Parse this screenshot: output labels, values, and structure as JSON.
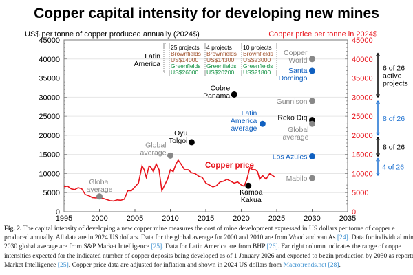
{
  "chart_data": {
    "type": "line",
    "title": "Copper capital intensity for developing new mines",
    "ylabel": "US$ per tonne of copper produced annually (2024$)",
    "y2label": "Copper price per tonne in 2024$",
    "xlim": [
      1995,
      2035
    ],
    "ylim": [
      0,
      45000
    ],
    "xticks": [
      1995,
      2000,
      2005,
      2010,
      2015,
      2020,
      2025,
      2030,
      2035
    ],
    "yticks": [
      0,
      5000,
      10000,
      15000,
      20000,
      25000,
      30000,
      35000,
      40000,
      45000
    ],
    "grid": true,
    "copper_price": {
      "name": "Copper price",
      "color": "#e8141c",
      "x": [
        1995,
        1995.5,
        1996,
        1996.5,
        1997,
        1997.5,
        1998,
        1998.5,
        1999,
        1999.5,
        2000,
        2000.5,
        2001,
        2001.5,
        2002,
        2002.5,
        2003,
        2003.5,
        2004,
        2004.5,
        2005,
        2005.5,
        2006,
        2006.3,
        2006.6,
        2007,
        2007.3,
        2007.6,
        2008,
        2008.4,
        2008.8,
        2009.2,
        2009.6,
        2010,
        2010.4,
        2010.8,
        2011.1,
        2011.5,
        2012,
        2012.5,
        2013,
        2013.5,
        2014,
        2014.5,
        2015,
        2015.5,
        2016,
        2016.5,
        2017,
        2017.5,
        2018,
        2018.5,
        2019,
        2019.5,
        2020,
        2020.4,
        2020.8,
        2021.2,
        2021.6,
        2022,
        2022.3,
        2022.6,
        2023,
        2023.5,
        2024,
        2024.4,
        2024.8
      ],
      "y": [
        6500,
        6700,
        6000,
        5800,
        6300,
        6000,
        4500,
        4200,
        3700,
        3600,
        3700,
        3500,
        3200,
        2900,
        2800,
        3100,
        3000,
        3300,
        5500,
        5500,
        6500,
        7500,
        12000,
        11000,
        9000,
        12000,
        11500,
        10500,
        12500,
        11000,
        5500,
        7000,
        8500,
        11000,
        10500,
        12500,
        13500,
        12500,
        11000,
        11000,
        10200,
        10000,
        9300,
        9000,
        7500,
        7000,
        6500,
        6800,
        7800,
        8000,
        8500,
        8000,
        7500,
        7800,
        7000,
        6700,
        8500,
        11500,
        11000,
        11000,
        10500,
        8500,
        9500,
        8500,
        10000,
        9500,
        9000
      ]
    },
    "points": [
      {
        "label": "Global average",
        "x": 2000,
        "y": 4000,
        "color": "#888888"
      },
      {
        "label": "Global average",
        "x": 2010,
        "y": 14700,
        "color": "#888888"
      },
      {
        "label": "Oyu Tolgoi",
        "x": 2013,
        "y": 18200,
        "color": "#000000"
      },
      {
        "label": "Cobre Panama",
        "x": 2019,
        "y": 30700,
        "color": "#000000"
      },
      {
        "label": "Latin America average",
        "x": 2023,
        "y": 23000,
        "color": "#1060c0"
      },
      {
        "label": "Kamoa Kakua",
        "x": 2021,
        "y": 6800,
        "color": "#000000"
      },
      {
        "label": "Copper World",
        "x": 2030,
        "y": 40000,
        "color": "#888888"
      },
      {
        "label": "Santa Domingo",
        "x": 2030,
        "y": 36900,
        "color": "#1060c0"
      },
      {
        "label": "Gunnison",
        "x": 2030,
        "y": 29000,
        "color": "#888888"
      },
      {
        "label": "Reko Diq",
        "x": 2030,
        "y": 24000,
        "color": "#000000"
      },
      {
        "label": "Global average",
        "x": 2030,
        "y": 23000,
        "color": "#888888"
      },
      {
        "label": "Los Azules",
        "x": 2030,
        "y": 14500,
        "color": "#1060c0"
      },
      {
        "label": "Mabilo",
        "x": 2030,
        "y": 8800,
        "color": "#888888"
      }
    ],
    "ranges": [
      {
        "label": "6 of 26 active projects",
        "from": 30000,
        "to": 41500,
        "color": "#000000"
      },
      {
        "label": "8 of 26",
        "from": 20000,
        "to": 29000,
        "color": "#1a6fd0"
      },
      {
        "label": "8 of 26",
        "from": 14500,
        "to": 19500,
        "color": "#000000"
      },
      {
        "label": "4 of 26",
        "from": 9500,
        "to": 14000,
        "color": "#1a6fd0"
      }
    ],
    "annotations": {
      "region": "Latin America",
      "boxes": [
        {
          "projects": "25 projects",
          "brown_label": "Brownfields",
          "brown": "US$14000",
          "green_label": "Greenfields",
          "green": "US$26000"
        },
        {
          "projects": "4 projects",
          "brown_label": "Brownfields",
          "brown": "US$14300",
          "green_label": "Greenfields",
          "green": "US$20200"
        },
        {
          "projects": "10 projects",
          "brown_label": "Brownfields",
          "brown": "US$23000",
          "green_label": "Greenfields",
          "green": "US$21800"
        }
      ]
    }
  },
  "caption": {
    "fig": "Fig. 2.",
    "l1": " The capital intensity of developing a new copper mine measures the cost of mine development expressed in US dollars per tonne of copper e",
    "l2a": "produced annually. All data are in 2024 US dollars. Data for the global average for 2000 and 2010 are from Wood and van As ",
    "r24": "[24]",
    "l2b": ". Data for individual mine",
    "l3a": "2030 global average are from S&P Market Intelligence ",
    "r25": "[25]",
    "l3b": ". Data for Latin America are from BHP ",
    "r26": "[26]",
    "l3c": ". Far right column indicates the range of coppe",
    "l4": "intensities expected for the indicated number of copper deposits being developed as of 1 January 2026 and expected to begin production by 2030 as reporte",
    "l5a": "Market Intelligence ",
    "r25b": "[25]",
    "l5b": ". Copper price data are adjusted for inflation and shown in 2024 US dollars from ",
    "link": "Macrotrends.net",
    "r28": "[28]",
    "l5c": "."
  }
}
